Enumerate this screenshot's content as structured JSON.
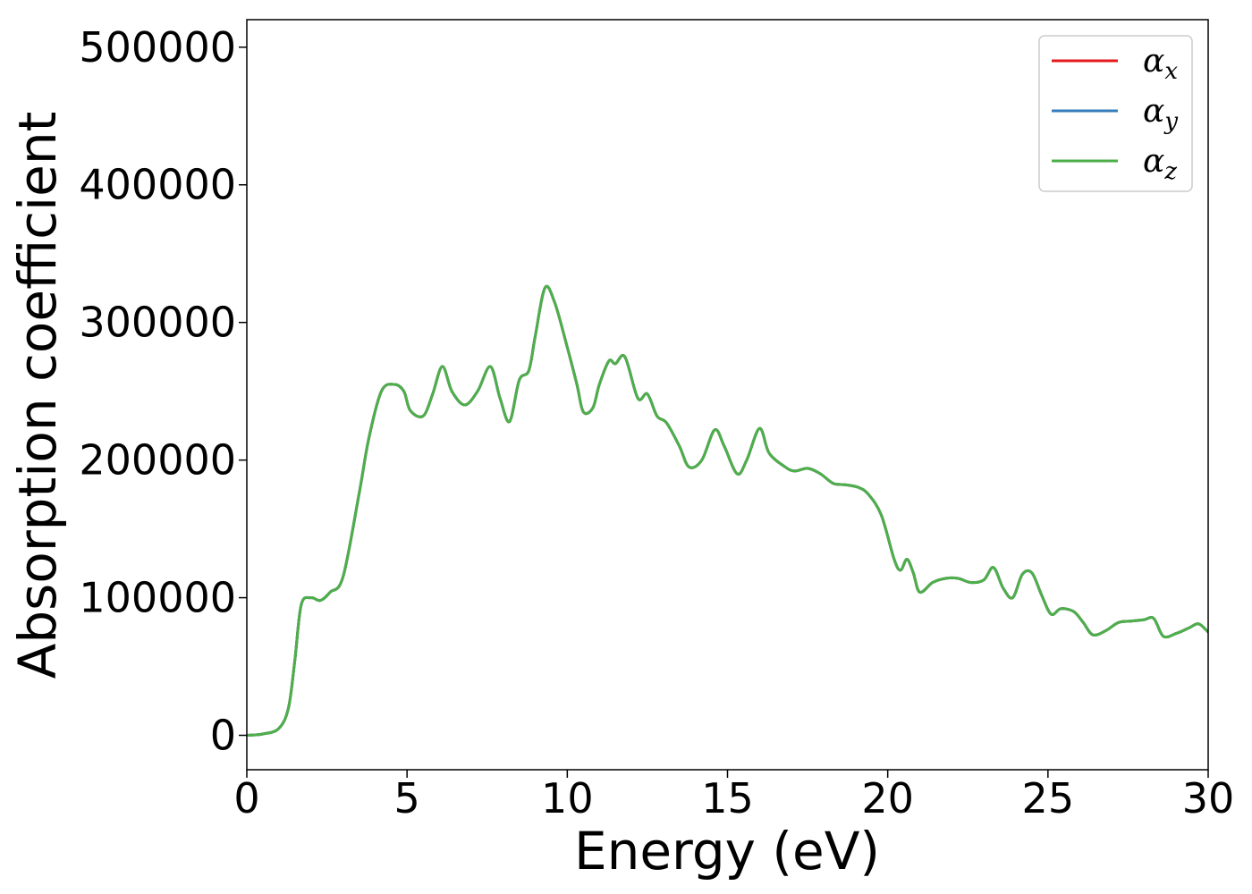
{
  "chart_data": {
    "type": "line",
    "title": "",
    "xlabel": "Energy (eV)",
    "ylabel": "Absorption coefficient",
    "xlim": [
      0,
      30
    ],
    "ylim": [
      -25000,
      520000
    ],
    "xticks": [
      0,
      5,
      10,
      15,
      20,
      25,
      30
    ],
    "yticks": [
      0,
      100000,
      200000,
      300000,
      400000,
      500000
    ],
    "grid": false,
    "legend": "top-right",
    "x": [
      0,
      0.5,
      1.0,
      1.3,
      1.5,
      1.7,
      2.0,
      2.3,
      2.6,
      3.0,
      3.5,
      3.8,
      4.2,
      4.6,
      4.9,
      5.1,
      5.5,
      5.8,
      6.1,
      6.4,
      6.8,
      7.2,
      7.6,
      7.9,
      8.2,
      8.5,
      8.8,
      9.0,
      9.3,
      9.6,
      10.0,
      10.3,
      10.5,
      10.8,
      11.0,
      11.3,
      11.5,
      11.8,
      12.2,
      12.5,
      12.8,
      13.1,
      13.5,
      13.8,
      14.2,
      14.6,
      14.9,
      15.3,
      15.6,
      16.0,
      16.3,
      16.8,
      17.1,
      17.5,
      17.9,
      18.3,
      18.7,
      19.1,
      19.4,
      19.8,
      20.2,
      20.4,
      20.6,
      20.8,
      21.0,
      21.4,
      21.8,
      22.2,
      22.6,
      23.0,
      23.3,
      23.6,
      23.9,
      24.2,
      24.5,
      24.8,
      25.1,
      25.4,
      25.8,
      26.1,
      26.4,
      26.8,
      27.2,
      27.6,
      28.0,
      28.3,
      28.6,
      29.0,
      29.4,
      29.7,
      30.0
    ],
    "series": [
      {
        "name": "α_x",
        "color": "#e41a1c",
        "values": [
          0,
          1000,
          5000,
          20000,
          55000,
          95000,
          100000,
          98000,
          104000,
          115000,
          175000,
          215000,
          250000,
          255000,
          250000,
          236000,
          232000,
          248000,
          268000,
          250000,
          240000,
          250000,
          268000,
          245000,
          228000,
          258000,
          265000,
          290000,
          325000,
          315000,
          282000,
          255000,
          235000,
          238000,
          255000,
          272000,
          270000,
          275000,
          245000,
          248000,
          232000,
          227000,
          210000,
          195000,
          200000,
          222000,
          210000,
          190000,
          200000,
          223000,
          205000,
          195000,
          192000,
          194000,
          190000,
          183000,
          182000,
          180000,
          175000,
          160000,
          128000,
          120000,
          128000,
          118000,
          104000,
          111000,
          114000,
          114000,
          111000,
          113000,
          122000,
          107000,
          100000,
          117000,
          118000,
          102000,
          88000,
          92000,
          90000,
          82000,
          73000,
          76000,
          82000,
          83000,
          84000,
          85000,
          72000,
          74000,
          78000,
          81000,
          75000
        ]
      },
      {
        "name": "α_y",
        "color": "#377eb8",
        "values": [
          0,
          1000,
          5000,
          20000,
          55000,
          95000,
          100000,
          98000,
          104000,
          115000,
          175000,
          215000,
          250000,
          255000,
          250000,
          236000,
          232000,
          248000,
          268000,
          250000,
          240000,
          250000,
          268000,
          245000,
          228000,
          258000,
          265000,
          290000,
          325000,
          315000,
          282000,
          255000,
          235000,
          238000,
          255000,
          272000,
          270000,
          275000,
          245000,
          248000,
          232000,
          227000,
          210000,
          195000,
          200000,
          222000,
          210000,
          190000,
          200000,
          223000,
          205000,
          195000,
          192000,
          194000,
          190000,
          183000,
          182000,
          180000,
          175000,
          160000,
          128000,
          120000,
          128000,
          118000,
          104000,
          111000,
          114000,
          114000,
          111000,
          113000,
          122000,
          107000,
          100000,
          117000,
          118000,
          102000,
          88000,
          92000,
          90000,
          82000,
          73000,
          76000,
          82000,
          83000,
          84000,
          85000,
          72000,
          74000,
          78000,
          81000,
          75000
        ]
      },
      {
        "name": "α_z",
        "color": "#4daf4a",
        "values": [
          0,
          1000,
          5000,
          20000,
          55000,
          95000,
          100000,
          98000,
          104000,
          115000,
          175000,
          215000,
          250000,
          255000,
          250000,
          236000,
          232000,
          248000,
          268000,
          250000,
          240000,
          250000,
          268000,
          245000,
          228000,
          258000,
          265000,
          290000,
          325000,
          315000,
          282000,
          255000,
          235000,
          238000,
          255000,
          272000,
          270000,
          275000,
          245000,
          248000,
          232000,
          227000,
          210000,
          195000,
          200000,
          222000,
          210000,
          190000,
          200000,
          223000,
          205000,
          195000,
          192000,
          194000,
          190000,
          183000,
          182000,
          180000,
          175000,
          160000,
          128000,
          120000,
          128000,
          118000,
          104000,
          111000,
          114000,
          114000,
          111000,
          113000,
          122000,
          107000,
          100000,
          117000,
          118000,
          102000,
          88000,
          92000,
          90000,
          82000,
          73000,
          76000,
          82000,
          83000,
          84000,
          85000,
          72000,
          74000,
          78000,
          81000,
          75000
        ]
      }
    ],
    "legend_entries": [
      {
        "symbol": "α",
        "sub": "x",
        "color": "#e41a1c"
      },
      {
        "symbol": "α",
        "sub": "y",
        "color": "#377eb8"
      },
      {
        "symbol": "α",
        "sub": "z",
        "color": "#4daf4a"
      }
    ]
  }
}
